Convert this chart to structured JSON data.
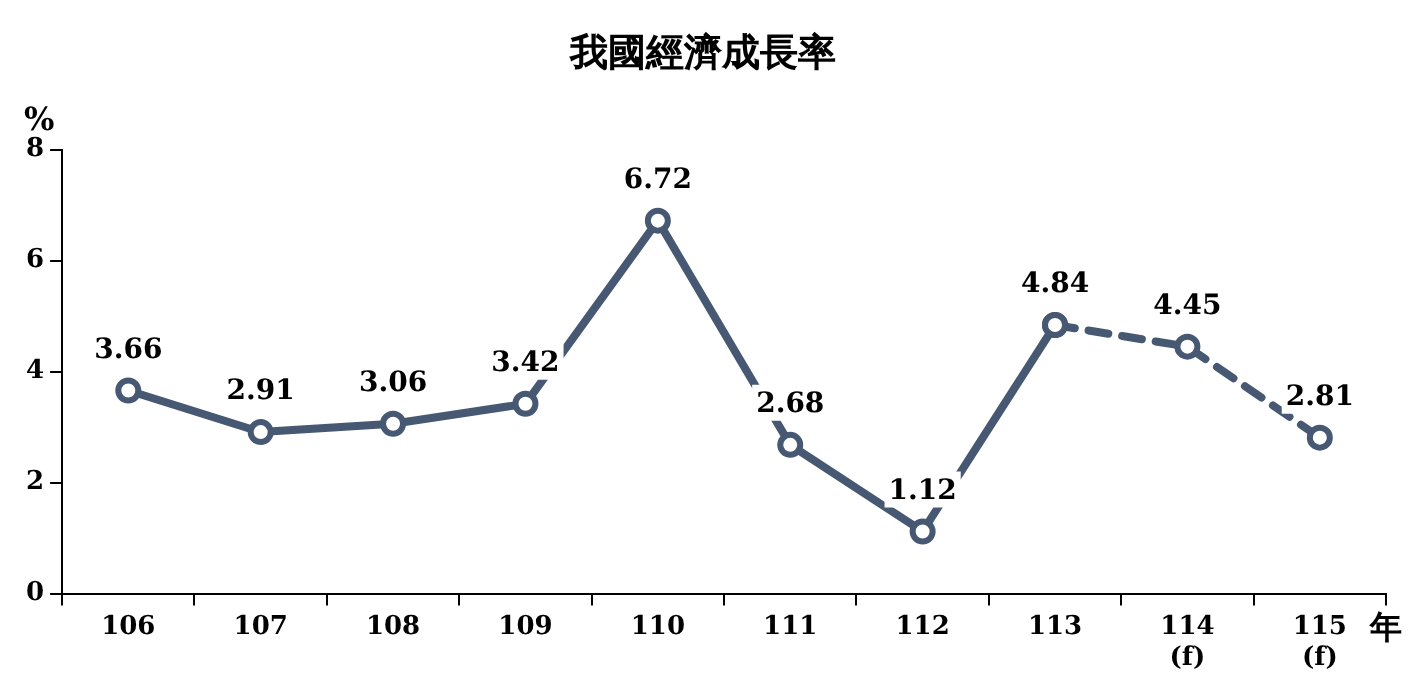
{
  "chart_data": {
    "type": "line",
    "title": "我國經濟成長率",
    "ylabel": "%",
    "xlabel": "年",
    "categories": [
      "106",
      "107",
      "108",
      "109",
      "110",
      "111",
      "112",
      "113",
      "114\n(f)",
      "115\n(f)"
    ],
    "series": [
      {
        "color": "#475872",
        "line_style": "solid",
        "values": [
          3.66,
          2.91,
          3.06,
          3.42,
          6.72,
          2.68,
          1.12,
          4.84,
          null,
          null
        ],
        "value_labels": [
          "3.66",
          "2.91",
          "3.06",
          "3.42",
          "6.72",
          "2.68",
          "1.12",
          "4.84",
          null,
          null
        ]
      },
      {
        "color": "#475872",
        "line_style": "dashed",
        "values": [
          null,
          null,
          null,
          null,
          null,
          null,
          null,
          4.84,
          4.45,
          2.81
        ],
        "value_labels": [
          null,
          null,
          null,
          null,
          null,
          null,
          null,
          null,
          "4.45",
          "2.81"
        ]
      }
    ],
    "ylim": [
      0,
      8
    ],
    "yticks": [
      0,
      2,
      4,
      6,
      8
    ],
    "grid": false,
    "legend": false,
    "marker": "circle"
  }
}
